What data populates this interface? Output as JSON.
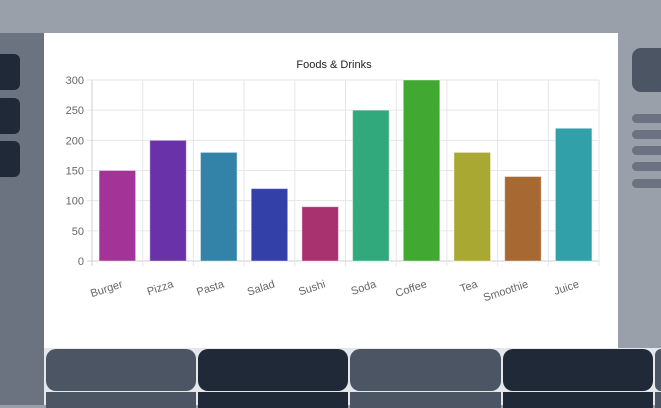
{
  "chart_data": {
    "type": "bar",
    "title": "Foods & Drinks",
    "categories": [
      "Burger",
      "Pizza",
      "Pasta",
      "Salad",
      "Sushi",
      "Soda",
      "Coffee",
      "Tea",
      "Smoothie",
      "Juice"
    ],
    "values": [
      150,
      200,
      180,
      120,
      90,
      250,
      300,
      180,
      140,
      220
    ],
    "colors": [
      "#a33397",
      "#6a32a8",
      "#3383a8",
      "#3340a8",
      "#a8326f",
      "#32a87d",
      "#41a832",
      "#a8a832",
      "#a86832",
      "#32a0a8"
    ],
    "ylim": [
      0,
      300
    ],
    "yticks": [
      0,
      50,
      100,
      150,
      200,
      250,
      300
    ],
    "grid": true,
    "legend": "none"
  }
}
